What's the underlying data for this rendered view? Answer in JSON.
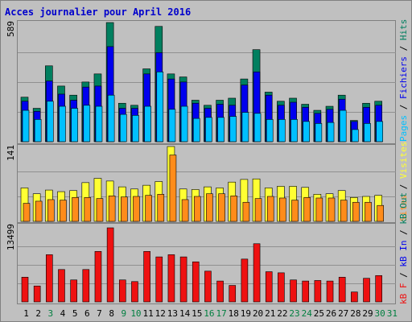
{
  "title": "Acces journalier pour April 2016",
  "labels": {
    "top_ymax": "589",
    "mid_ymax": "141",
    "bot_ymax": "13499",
    "top_axis": [
      "Pages",
      " / ",
      "Fichiers",
      " / ",
      "Hits"
    ],
    "mid_axis": [
      "Sites",
      " / ",
      "Visites"
    ],
    "bot_axis": [
      "kB F",
      " / ",
      "kB In",
      " / ",
      "kB Out"
    ]
  },
  "colors": {
    "background": "#c0c0c0",
    "frame": "#808080",
    "title": "#0000cc",
    "hits": "#007f5f",
    "files": "#0000ee",
    "pages": "#00c0ff",
    "visits": "#ffff33",
    "sites": "#ff8c1a",
    "kb": "#ee1111",
    "day_normal": "#000000",
    "day_weekend": "#007f3f"
  },
  "chart_data": [
    {
      "type": "bar",
      "name": "hits-files-pages",
      "ylim": [
        0,
        589
      ],
      "ymax_label": "589",
      "categories": [
        "1",
        "2",
        "3",
        "4",
        "5",
        "6",
        "7",
        "8",
        "9",
        "10",
        "11",
        "12",
        "13",
        "14",
        "15",
        "16",
        "17",
        "18",
        "19",
        "20",
        "21",
        "22",
        "23",
        "24",
        "25",
        "26",
        "27",
        "28",
        "29",
        "30",
        "31"
      ],
      "series": [
        {
          "name": "Hits",
          "values": [
            220,
            165,
            375,
            275,
            230,
            295,
            335,
            589,
            190,
            180,
            360,
            570,
            335,
            320,
            205,
            180,
            205,
            215,
            310,
            455,
            245,
            200,
            215,
            185,
            155,
            175,
            230,
            105,
            190,
            200,
            0
          ]
        },
        {
          "name": "Fichiers",
          "values": [
            200,
            150,
            300,
            235,
            205,
            270,
            275,
            470,
            165,
            165,
            335,
            440,
            310,
            295,
            190,
            165,
            185,
            180,
            280,
            345,
            230,
            180,
            195,
            170,
            140,
            160,
            210,
            100,
            170,
            180,
            0
          ]
        },
        {
          "name": "Pages",
          "values": [
            155,
            110,
            200,
            175,
            165,
            180,
            175,
            230,
            135,
            130,
            175,
            345,
            160,
            175,
            115,
            120,
            120,
            125,
            145,
            140,
            110,
            110,
            110,
            100,
            90,
            95,
            155,
            60,
            90,
            100,
            0
          ]
        }
      ]
    },
    {
      "type": "bar",
      "name": "visits-sites",
      "ylim": [
        0,
        141
      ],
      "ymax_label": "141",
      "categories": [
        "1",
        "2",
        "3",
        "4",
        "5",
        "6",
        "7",
        "8",
        "9",
        "10",
        "11",
        "12",
        "13",
        "14",
        "15",
        "16",
        "17",
        "18",
        "19",
        "20",
        "21",
        "22",
        "23",
        "24",
        "25",
        "26",
        "27",
        "28",
        "29",
        "30",
        "31"
      ],
      "series": [
        {
          "name": "Visites",
          "values": [
            63,
            52,
            59,
            56,
            58,
            73,
            81,
            76,
            65,
            61,
            68,
            75,
            141,
            61,
            60,
            65,
            63,
            74,
            79,
            80,
            63,
            66,
            66,
            64,
            51,
            52,
            58,
            45,
            47,
            49,
            0
          ]
        },
        {
          "name": "Sites",
          "values": [
            34,
            38,
            41,
            40,
            45,
            45,
            43,
            48,
            46,
            47,
            49,
            51,
            125,
            41,
            47,
            52,
            52,
            48,
            36,
            43,
            47,
            44,
            40,
            45,
            44,
            44,
            40,
            36,
            36,
            30,
            0
          ]
        }
      ]
    },
    {
      "type": "bar",
      "name": "kb",
      "ylim": [
        0,
        13499
      ],
      "ymax_label": "13499",
      "categories": [
        "1",
        "2",
        "3",
        "4",
        "5",
        "6",
        "7",
        "8",
        "9",
        "10",
        "11",
        "12",
        "13",
        "14",
        "15",
        "16",
        "17",
        "18",
        "19",
        "20",
        "21",
        "22",
        "23",
        "24",
        "25",
        "26",
        "27",
        "28",
        "29",
        "30",
        "31"
      ],
      "series": [
        {
          "name": "kB F",
          "values": [
            4500,
            2900,
            8600,
            5900,
            4000,
            5900,
            9200,
            13499,
            4000,
            3700,
            9200,
            8200,
            8600,
            8200,
            7300,
            5600,
            3800,
            3000,
            7800,
            10600,
            5500,
            5300,
            4000,
            3800,
            3900,
            3800,
            4500,
            1800,
            4300,
            4800,
            0
          ]
        }
      ]
    }
  ],
  "days": [
    {
      "label": "1",
      "weekend": false
    },
    {
      "label": "2",
      "weekend": false
    },
    {
      "label": "3",
      "weekend": true
    },
    {
      "label": "4",
      "weekend": false
    },
    {
      "label": "5",
      "weekend": false
    },
    {
      "label": "6",
      "weekend": false
    },
    {
      "label": "7",
      "weekend": false
    },
    {
      "label": "8",
      "weekend": false
    },
    {
      "label": "9",
      "weekend": true
    },
    {
      "label": "10",
      "weekend": true
    },
    {
      "label": "11",
      "weekend": false
    },
    {
      "label": "12",
      "weekend": false
    },
    {
      "label": "13",
      "weekend": false
    },
    {
      "label": "14",
      "weekend": false
    },
    {
      "label": "15",
      "weekend": false
    },
    {
      "label": "16",
      "weekend": true
    },
    {
      "label": "17",
      "weekend": true
    },
    {
      "label": "18",
      "weekend": false
    },
    {
      "label": "19",
      "weekend": false
    },
    {
      "label": "20",
      "weekend": false
    },
    {
      "label": "21",
      "weekend": false
    },
    {
      "label": "22",
      "weekend": false
    },
    {
      "label": "23",
      "weekend": true
    },
    {
      "label": "24",
      "weekend": true
    },
    {
      "label": "25",
      "weekend": false
    },
    {
      "label": "26",
      "weekend": false
    },
    {
      "label": "27",
      "weekend": false
    },
    {
      "label": "28",
      "weekend": false
    },
    {
      "label": "29",
      "weekend": false
    },
    {
      "label": "30",
      "weekend": true
    },
    {
      "label": "31",
      "weekend": true
    }
  ]
}
